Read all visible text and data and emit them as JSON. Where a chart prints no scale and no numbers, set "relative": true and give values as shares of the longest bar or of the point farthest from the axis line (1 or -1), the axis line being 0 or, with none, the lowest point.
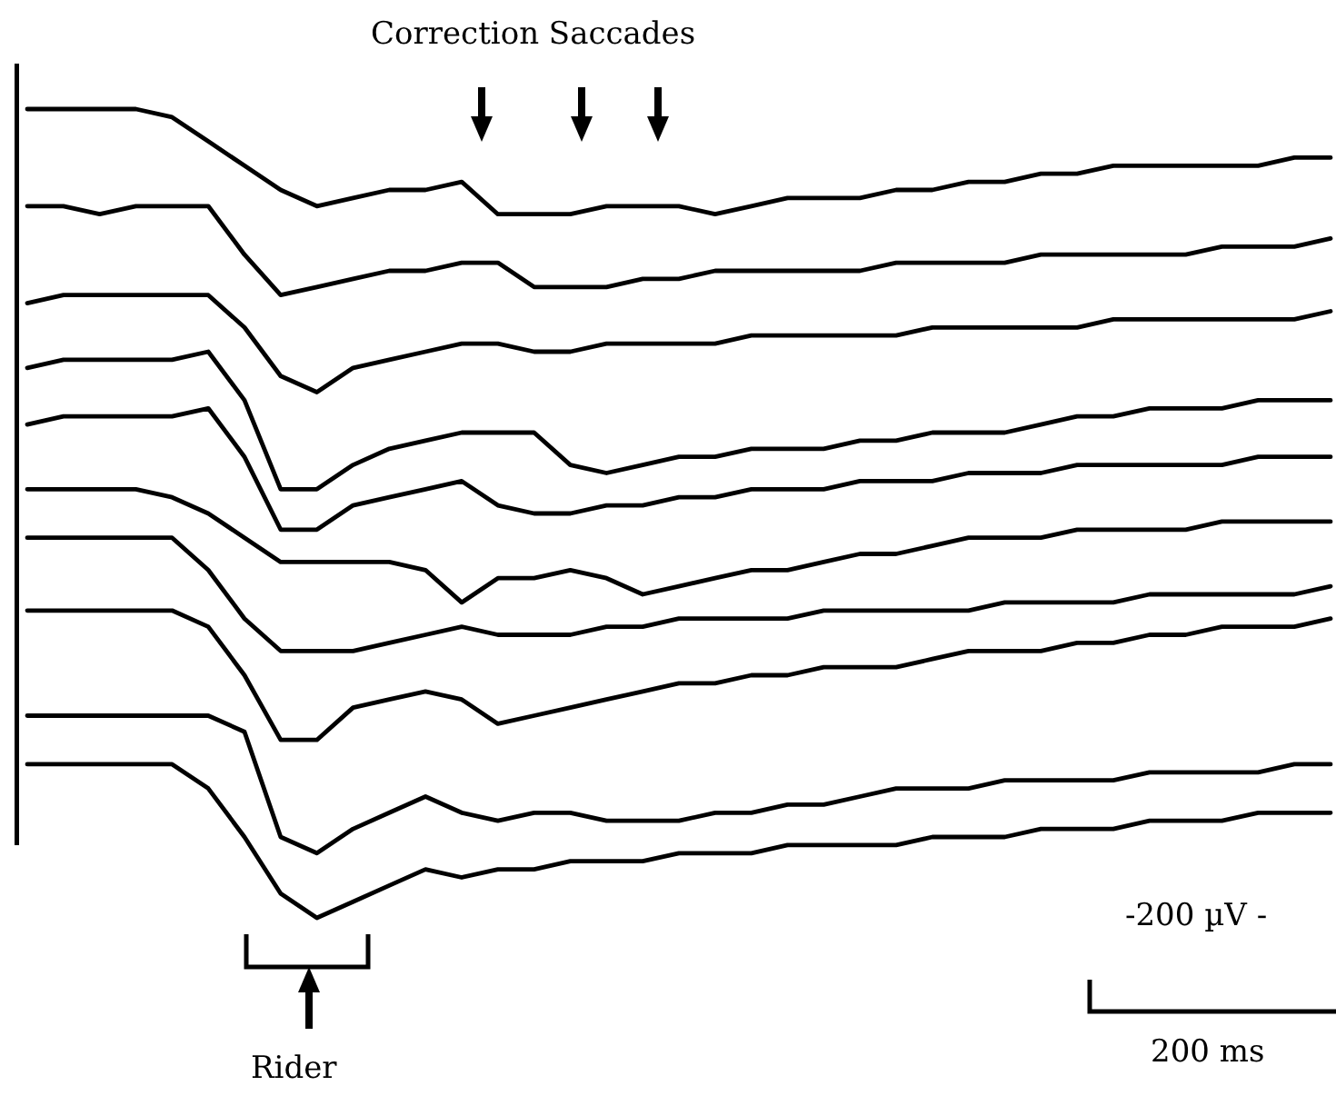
{
  "chart_data": {
    "type": "line",
    "relative": true,
    "marker": "none",
    "line_style": "solid",
    "legend": false,
    "categories": [
      null,
      null,
      null,
      null,
      null,
      null,
      null,
      null,
      null,
      null,
      null,
      null,
      null,
      null,
      null,
      null,
      null,
      null,
      null,
      null,
      null,
      null,
      null,
      null,
      null,
      null,
      null,
      null,
      null,
      null,
      null,
      null,
      null,
      null,
      null,
      null,
      null
    ],
    "series": [
      {
        "color": "#000000",
        "values": [
          1.0,
          1.0,
          1.0,
          1.0,
          0.99,
          0.96,
          0.93,
          0.9,
          0.88,
          0.89,
          0.9,
          0.9,
          0.91,
          0.87,
          0.87,
          0.87,
          0.88,
          0.88,
          0.88,
          0.87,
          0.88,
          0.89,
          0.89,
          0.89,
          0.9,
          0.9,
          0.91,
          0.91,
          0.92,
          0.92,
          0.93,
          0.93,
          0.93,
          0.93,
          0.93,
          0.94,
          0.94
        ]
      },
      {
        "color": "#000000",
        "values": [
          0.88,
          0.88,
          0.87,
          0.88,
          0.88,
          0.88,
          0.82,
          0.77,
          0.78,
          0.79,
          0.8,
          0.8,
          0.81,
          0.81,
          0.78,
          0.78,
          0.78,
          0.79,
          0.79,
          0.8,
          0.8,
          0.8,
          0.8,
          0.8,
          0.81,
          0.81,
          0.81,
          0.81,
          0.82,
          0.82,
          0.82,
          0.82,
          0.82,
          0.83,
          0.83,
          0.83,
          0.84
        ]
      },
      {
        "color": "#000000",
        "values": [
          0.76,
          0.77,
          0.77,
          0.77,
          0.77,
          0.77,
          0.73,
          0.67,
          0.65,
          0.68,
          0.69,
          0.7,
          0.71,
          0.71,
          0.7,
          0.7,
          0.71,
          0.71,
          0.71,
          0.71,
          0.72,
          0.72,
          0.72,
          0.72,
          0.72,
          0.73,
          0.73,
          0.73,
          0.73,
          0.73,
          0.74,
          0.74,
          0.74,
          0.74,
          0.74,
          0.74,
          0.75
        ]
      },
      {
        "color": "#000000",
        "values": [
          0.68,
          0.69,
          0.69,
          0.69,
          0.69,
          0.7,
          0.64,
          0.53,
          0.53,
          0.56,
          0.58,
          0.59,
          0.6,
          0.6,
          0.6,
          0.56,
          0.55,
          0.56,
          0.57,
          0.57,
          0.58,
          0.58,
          0.58,
          0.59,
          0.59,
          0.6,
          0.6,
          0.6,
          0.61,
          0.62,
          0.62,
          0.63,
          0.63,
          0.63,
          0.64,
          0.64,
          0.64
        ]
      },
      {
        "color": "#000000",
        "values": [
          0.61,
          0.62,
          0.62,
          0.62,
          0.62,
          0.63,
          0.57,
          0.48,
          0.48,
          0.51,
          0.52,
          0.53,
          0.54,
          0.51,
          0.5,
          0.5,
          0.51,
          0.51,
          0.52,
          0.52,
          0.53,
          0.53,
          0.53,
          0.54,
          0.54,
          0.54,
          0.55,
          0.55,
          0.55,
          0.56,
          0.56,
          0.56,
          0.56,
          0.56,
          0.57,
          0.57,
          0.57
        ]
      },
      {
        "color": "#000000",
        "values": [
          0.53,
          0.53,
          0.53,
          0.53,
          0.52,
          0.5,
          0.47,
          0.44,
          0.44,
          0.44,
          0.44,
          0.43,
          0.39,
          0.42,
          0.42,
          0.43,
          0.42,
          0.4,
          0.41,
          0.42,
          0.43,
          0.43,
          0.44,
          0.45,
          0.45,
          0.46,
          0.47,
          0.47,
          0.47,
          0.48,
          0.48,
          0.48,
          0.48,
          0.49,
          0.49,
          0.49,
          0.49
        ]
      },
      {
        "color": "#000000",
        "values": [
          0.47,
          0.47,
          0.47,
          0.47,
          0.47,
          0.43,
          0.37,
          0.33,
          0.33,
          0.33,
          0.34,
          0.35,
          0.36,
          0.35,
          0.35,
          0.35,
          0.36,
          0.36,
          0.37,
          0.37,
          0.37,
          0.37,
          0.38,
          0.38,
          0.38,
          0.38,
          0.38,
          0.39,
          0.39,
          0.39,
          0.39,
          0.4,
          0.4,
          0.4,
          0.4,
          0.4,
          0.41
        ]
      },
      {
        "color": "#000000",
        "values": [
          0.38,
          0.38,
          0.38,
          0.38,
          0.38,
          0.36,
          0.3,
          0.22,
          0.22,
          0.26,
          0.27,
          0.28,
          0.27,
          0.24,
          0.25,
          0.26,
          0.27,
          0.28,
          0.29,
          0.29,
          0.3,
          0.3,
          0.31,
          0.31,
          0.31,
          0.32,
          0.33,
          0.33,
          0.33,
          0.34,
          0.34,
          0.35,
          0.35,
          0.36,
          0.36,
          0.36,
          0.37
        ]
      },
      {
        "color": "#000000",
        "values": [
          0.25,
          0.25,
          0.25,
          0.25,
          0.25,
          0.25,
          0.23,
          0.1,
          0.08,
          0.11,
          0.13,
          0.15,
          0.13,
          0.12,
          0.13,
          0.13,
          0.12,
          0.12,
          0.12,
          0.13,
          0.13,
          0.14,
          0.14,
          0.15,
          0.16,
          0.16,
          0.16,
          0.17,
          0.17,
          0.17,
          0.17,
          0.18,
          0.18,
          0.18,
          0.18,
          0.19,
          0.19
        ]
      },
      {
        "color": "#000000",
        "values": [
          0.19,
          0.19,
          0.19,
          0.19,
          0.19,
          0.16,
          0.1,
          0.03,
          0.0,
          0.02,
          0.04,
          0.06,
          0.05,
          0.06,
          0.06,
          0.07,
          0.07,
          0.07,
          0.08,
          0.08,
          0.08,
          0.09,
          0.09,
          0.09,
          0.09,
          0.1,
          0.1,
          0.1,
          0.11,
          0.11,
          0.11,
          0.12,
          0.12,
          0.12,
          0.13,
          0.13,
          0.13
        ]
      }
    ],
    "annotations": [
      "Correction Saccades",
      "Rider",
      "-200 µV -",
      "200 ms"
    ]
  }
}
